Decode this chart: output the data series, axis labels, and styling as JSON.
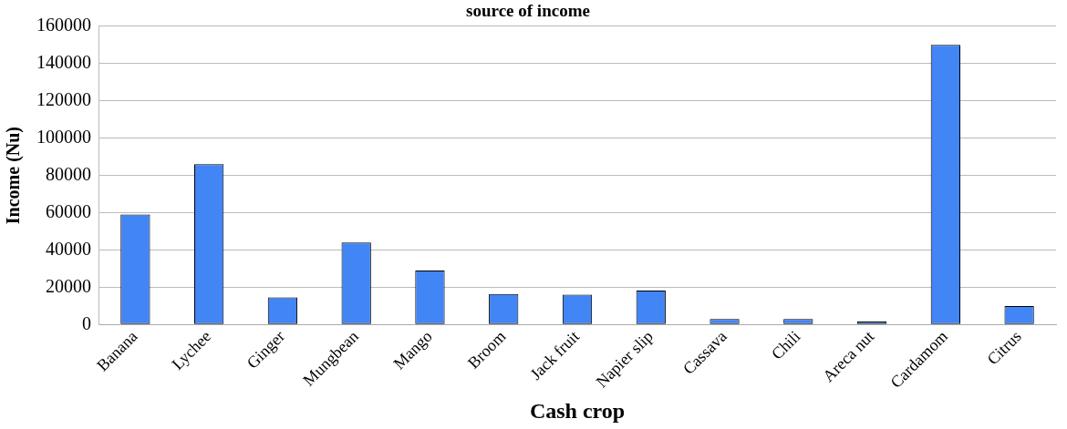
{
  "chart_data": {
    "type": "bar",
    "title": "source of income",
    "xlabel": "Cash crop",
    "ylabel": "Income (Nu)",
    "categories": [
      "Banana",
      "Lychee",
      "Ginger",
      "Mungbean",
      "Mango",
      "Broom",
      "Jack fruit",
      "Napier slip",
      "Cassava",
      "Chili",
      "Areca nut",
      "Cardamom",
      "Citrus"
    ],
    "values": [
      59000,
      86000,
      14600,
      44000,
      29000,
      16400,
      16000,
      18300,
      3000,
      3000,
      1600,
      150000,
      10000
    ],
    "color": "#4285f4",
    "ylim": [
      0,
      160000
    ],
    "yticks": [
      0,
      20000,
      40000,
      60000,
      80000,
      100000,
      120000,
      140000,
      160000
    ],
    "grid": "y",
    "legend": false
  }
}
